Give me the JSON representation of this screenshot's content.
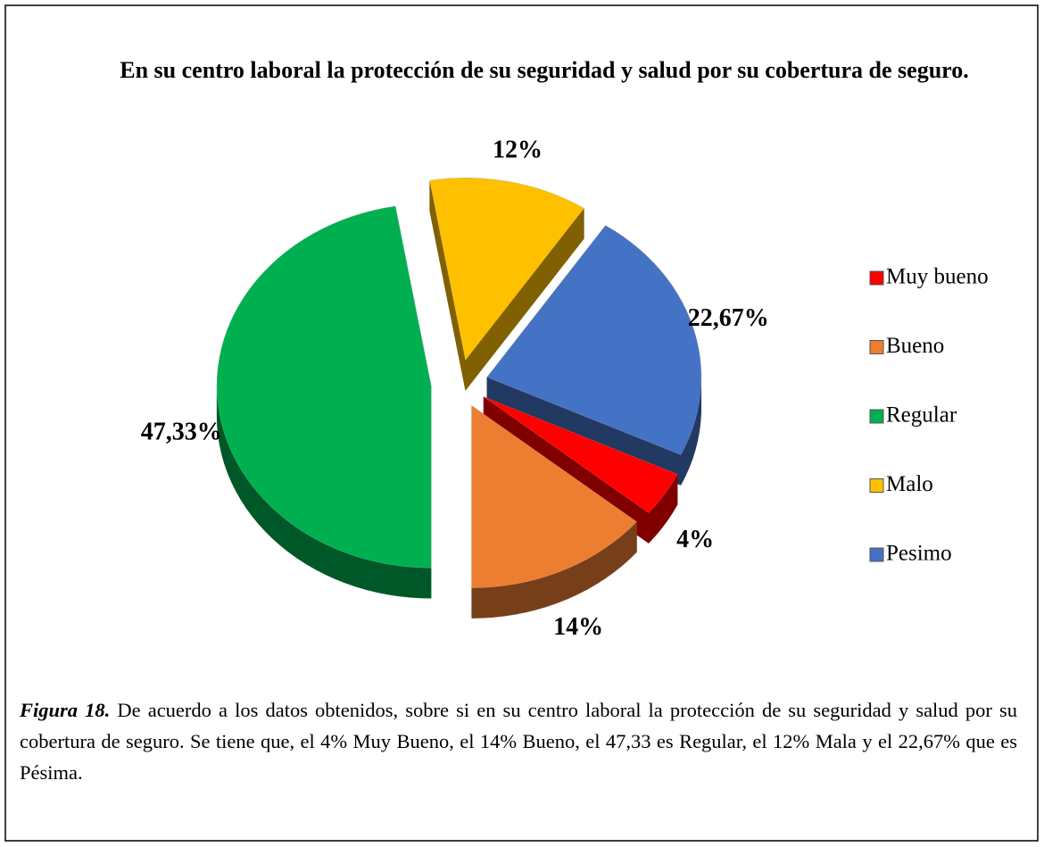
{
  "chart_data": {
    "type": "pie",
    "title": "En su centro laboral la protección de su seguridad y salud por su cobertura de seguro.",
    "categories": [
      "Muy bueno",
      "Bueno",
      "Regular",
      "Malo",
      "Pesimo"
    ],
    "values": [
      4,
      14,
      47.33,
      12,
      22.67
    ],
    "value_labels": [
      "4%",
      "14%",
      "47,33%",
      "12%",
      "22,67%"
    ],
    "colors": [
      "#ff0000",
      "#ed7d31",
      "#00b050",
      "#ffc000",
      "#4472c4"
    ],
    "legend": "right"
  },
  "caption": {
    "label": "Figura 18.",
    "text": "De acuerdo a los datos obtenidos, sobre si en su centro laboral la protección de su seguridad y salud por su cobertura de seguro. Se tiene que, el 4% Muy Bueno, el 14% Bueno, el 47,33 es Regular, el 12% Mala y el 22,67% que es Pésima."
  }
}
